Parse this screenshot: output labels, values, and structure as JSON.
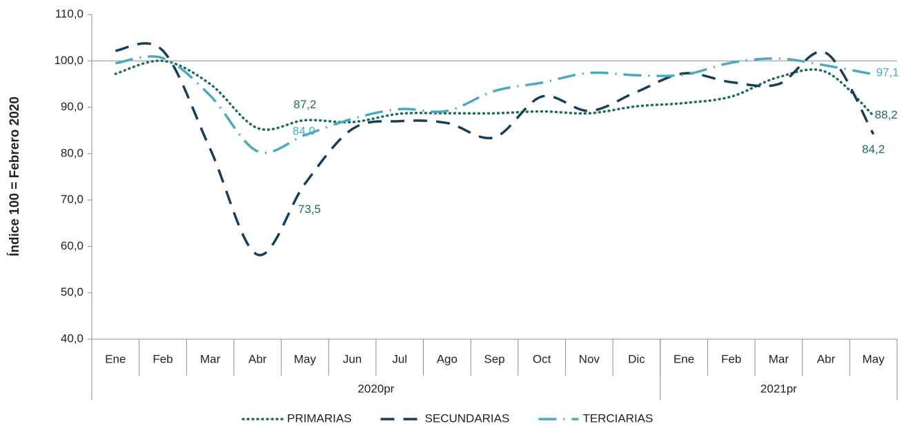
{
  "chart_data": {
    "type": "line",
    "y_label": "Índice 100 = Febrero 2020",
    "categories": [
      "Ene",
      "Feb",
      "Mar",
      "Abr",
      "May",
      "Jun",
      "Jul",
      "Ago",
      "Sep",
      "Oct",
      "Nov",
      "Dic",
      "Ene",
      "Feb",
      "Mar",
      "Abr",
      "May"
    ],
    "groups": [
      {
        "label": "2020pr",
        "span": 12
      },
      {
        "label": "2021pr",
        "span": 5
      }
    ],
    "ylim": [
      40,
      110
    ],
    "yticks": [
      {
        "value": 40,
        "label": "40,0"
      },
      {
        "value": 50,
        "label": "50,0"
      },
      {
        "value": 60,
        "label": "60,0"
      },
      {
        "value": 70,
        "label": "70,0"
      },
      {
        "value": 80,
        "label": "80,0"
      },
      {
        "value": 90,
        "label": "90,0"
      },
      {
        "value": 100,
        "label": "100,0"
      },
      {
        "value": 110,
        "label": "110,0"
      }
    ],
    "hline": 100,
    "series": [
      {
        "name": "PRIMARIAS",
        "color": "#1d6b60",
        "label_color": "#1d6b60",
        "dash": "dotted",
        "values": [
          97.2,
          100.0,
          95.0,
          85.5,
          87.2,
          86.8,
          88.6,
          88.7,
          88.7,
          89.1,
          88.7,
          90.2,
          90.9,
          92.3,
          96.5,
          97.6,
          88.2
        ],
        "value_labels": [
          null,
          null,
          null,
          null,
          "87,2",
          null,
          null,
          null,
          null,
          null,
          null,
          null,
          null,
          null,
          null,
          null,
          "88,2"
        ]
      },
      {
        "name": "SECUNDARIAS",
        "color": "#173d57",
        "label_color": "#1d6b60",
        "dash": "dashed",
        "values": [
          102.2,
          102.2,
          81.0,
          58.2,
          73.5,
          85.3,
          87.0,
          86.6,
          83.5,
          92.3,
          89.2,
          93.3,
          97.3,
          95.4,
          95.0,
          101.7,
          84.2
        ],
        "value_labels": [
          null,
          null,
          null,
          null,
          "73,5",
          null,
          null,
          null,
          null,
          null,
          null,
          null,
          null,
          null,
          null,
          null,
          "84,2"
        ]
      },
      {
        "name": "TERCIARIAS",
        "color": "#4aa9bd",
        "label_color": "#3fb3c2",
        "dash": "dashdot",
        "values": [
          99.5,
          100.6,
          92.5,
          80.5,
          84.0,
          87.5,
          89.6,
          89.2,
          93.5,
          95.3,
          97.4,
          96.9,
          97.0,
          99.6,
          100.5,
          99.0,
          97.1
        ],
        "value_labels": [
          null,
          null,
          null,
          null,
          "84,0",
          null,
          null,
          null,
          null,
          null,
          null,
          null,
          null,
          null,
          null,
          null,
          "97,1"
        ]
      }
    ]
  }
}
